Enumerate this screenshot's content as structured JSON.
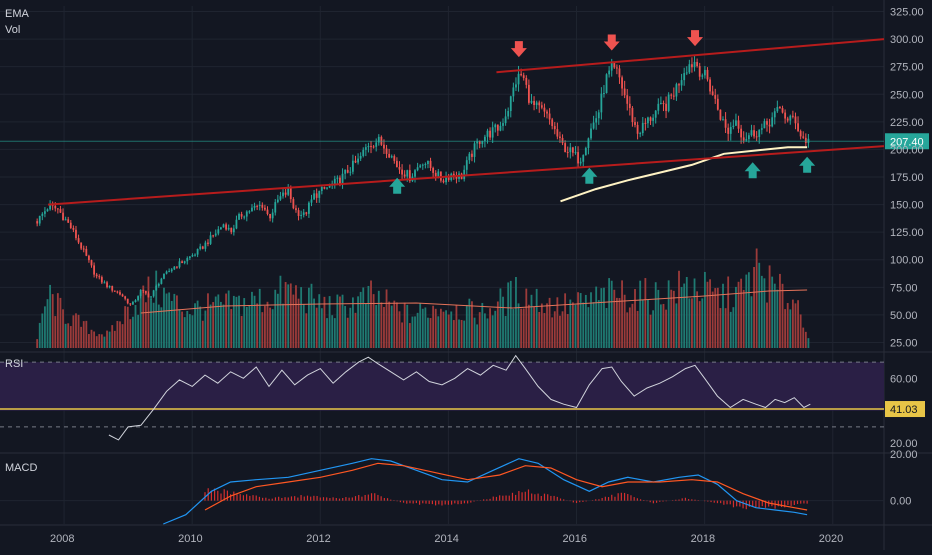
{
  "indicators": {
    "main": [
      "EMA",
      "Vol"
    ],
    "rsi": "RSI",
    "macd": "MACD"
  },
  "colors": {
    "background": "#131722",
    "grid": "#1f2430",
    "up": "#26a69a",
    "down": "#ef5350",
    "vol_up": "#1f7a72",
    "vol_down": "#9c3b3a",
    "trendline": "#b71c1c",
    "ema": "#fff3c4",
    "vol_ma": "#e5735a",
    "rsi_band": "#2a1f45",
    "rsi_line": "#d1d4dc",
    "rsi_level": "#e8c547",
    "macd_line": "#2196f3",
    "signal_line": "#ff5722",
    "hist": "#d32f2f",
    "arrow_down": "#ef5350",
    "arrow_up": "#26a69a",
    "axis_text": "#b2b5be"
  },
  "chart_data": [
    {
      "type": "candlestick",
      "name": "price",
      "ylim": [
        20,
        330
      ],
      "y_ticks": [
        "25.00",
        "50.00",
        "75.00",
        "100.00",
        "125.00",
        "150.00",
        "175.00",
        "200.00",
        "225.00",
        "250.00",
        "275.00",
        "300.00",
        "325.00"
      ],
      "y_tick_values": [
        25,
        50,
        75,
        100,
        125,
        150,
        175,
        200,
        225,
        250,
        275,
        300,
        325
      ],
      "x_range": [
        2007.0,
        2020.8
      ],
      "x_ticks": [
        "2008",
        "2010",
        "2012",
        "2014",
        "2016",
        "2018",
        "2020"
      ],
      "x_tick_values": [
        2008,
        2010,
        2012,
        2014,
        2016,
        2018,
        2020
      ],
      "last_price": "207.40",
      "last_value": 207.4,
      "close_anchors": [
        [
          2007.58,
          135
        ],
        [
          2007.75,
          148
        ],
        [
          2007.9,
          146
        ],
        [
          2008.1,
          130
        ],
        [
          2008.3,
          108
        ],
        [
          2008.5,
          85
        ],
        [
          2008.7,
          75
        ],
        [
          2008.9,
          68
        ],
        [
          2009.05,
          58
        ],
        [
          2009.2,
          72
        ],
        [
          2009.35,
          66
        ],
        [
          2009.5,
          82
        ],
        [
          2009.7,
          93
        ],
        [
          2009.9,
          100
        ],
        [
          2010.1,
          108
        ],
        [
          2010.3,
          120
        ],
        [
          2010.5,
          133
        ],
        [
          2010.6,
          125
        ],
        [
          2010.75,
          140
        ],
        [
          2010.9,
          145
        ],
        [
          2011.1,
          150
        ],
        [
          2011.2,
          138
        ],
        [
          2011.35,
          155
        ],
        [
          2011.5,
          162
        ],
        [
          2011.6,
          145
        ],
        [
          2011.75,
          140
        ],
        [
          2011.9,
          158
        ],
        [
          2012.1,
          165
        ],
        [
          2012.3,
          172
        ],
        [
          2012.45,
          182
        ],
        [
          2012.6,
          190
        ],
        [
          2012.75,
          205
        ],
        [
          2012.9,
          208
        ],
        [
          2013.05,
          200
        ],
        [
          2013.2,
          185
        ],
        [
          2013.4,
          175
        ],
        [
          2013.6,
          190
        ],
        [
          2013.75,
          182
        ],
        [
          2013.9,
          172
        ],
        [
          2014.05,
          178
        ],
        [
          2014.2,
          175
        ],
        [
          2014.35,
          195
        ],
        [
          2014.5,
          210
        ],
        [
          2014.65,
          215
        ],
        [
          2014.8,
          220
        ],
        [
          2014.95,
          240
        ],
        [
          2015.05,
          262
        ],
        [
          2015.15,
          268
        ],
        [
          2015.3,
          240
        ],
        [
          2015.45,
          235
        ],
        [
          2015.6,
          225
        ],
        [
          2015.75,
          205
        ],
        [
          2015.9,
          198
        ],
        [
          2016.05,
          190
        ],
        [
          2016.2,
          215
        ],
        [
          2016.35,
          235
        ],
        [
          2016.45,
          262
        ],
        [
          2016.55,
          272
        ],
        [
          2016.65,
          268
        ],
        [
          2016.8,
          240
        ],
        [
          2016.95,
          215
        ],
        [
          2017.1,
          225
        ],
        [
          2017.25,
          235
        ],
        [
          2017.4,
          240
        ],
        [
          2017.55,
          255
        ],
        [
          2017.7,
          275
        ],
        [
          2017.85,
          280
        ],
        [
          2017.95,
          270
        ],
        [
          2018.05,
          262
        ],
        [
          2018.2,
          238
        ],
        [
          2018.35,
          215
        ],
        [
          2018.5,
          228
        ],
        [
          2018.6,
          210
        ],
        [
          2018.75,
          215
        ],
        [
          2018.9,
          218
        ],
        [
          2019.05,
          228
        ],
        [
          2019.2,
          238
        ],
        [
          2019.3,
          224
        ],
        [
          2019.4,
          230
        ],
        [
          2019.5,
          212
        ],
        [
          2019.6,
          207.4
        ]
      ],
      "volume_anchors": [
        [
          2007.58,
          10
        ],
        [
          2007.75,
          63
        ],
        [
          2008.0,
          40
        ],
        [
          2008.4,
          22
        ],
        [
          2008.7,
          15
        ],
        [
          2009.0,
          45
        ],
        [
          2009.4,
          70
        ],
        [
          2009.9,
          45
        ],
        [
          2010.5,
          50
        ],
        [
          2011.2,
          58
        ],
        [
          2011.5,
          68
        ],
        [
          2012.2,
          46
        ],
        [
          2012.8,
          60
        ],
        [
          2013.4,
          38
        ],
        [
          2013.9,
          50
        ],
        [
          2014.5,
          40
        ],
        [
          2015.1,
          66
        ],
        [
          2015.7,
          48
        ],
        [
          2016.1,
          52
        ],
        [
          2016.6,
          64
        ],
        [
          2017.2,
          60
        ],
        [
          2017.8,
          74
        ],
        [
          2018.2,
          60
        ],
        [
          2018.6,
          66
        ],
        [
          2018.8,
          93
        ],
        [
          2019.1,
          68
        ],
        [
          2019.5,
          50
        ],
        [
          2019.6,
          15
        ]
      ],
      "vol_ma_anchors": [
        [
          2009.2,
          35
        ],
        [
          2010.5,
          42
        ],
        [
          2012.0,
          44
        ],
        [
          2013.5,
          45
        ],
        [
          2015.0,
          40
        ],
        [
          2016.0,
          44
        ],
        [
          2017.0,
          48
        ],
        [
          2018.0,
          52
        ],
        [
          2019.0,
          57
        ],
        [
          2019.6,
          58
        ]
      ],
      "ema_anchors": [
        [
          2015.75,
          153
        ],
        [
          2016.3,
          164
        ],
        [
          2016.8,
          172
        ],
        [
          2017.3,
          179
        ],
        [
          2017.8,
          186
        ],
        [
          2018.3,
          196
        ],
        [
          2018.8,
          199
        ],
        [
          2019.3,
          202
        ],
        [
          2019.6,
          202
        ]
      ],
      "trendlines": [
        {
          "from": [
            2007.75,
            150
          ],
          "to": [
            2020.8,
            203
          ]
        },
        {
          "from": [
            2014.75,
            270
          ],
          "to": [
            2020.8,
            300
          ]
        }
      ],
      "arrows_down": [
        [
          2015.1,
          290
        ],
        [
          2016.55,
          296
        ],
        [
          2017.85,
          300
        ]
      ],
      "arrows_up": [
        [
          2013.2,
          168
        ],
        [
          2016.2,
          177
        ],
        [
          2018.75,
          182
        ],
        [
          2019.6,
          187
        ]
      ]
    },
    {
      "type": "line",
      "name": "RSI",
      "ylim": [
        14.5,
        75
      ],
      "y_ticks": [
        "20.00",
        "60.00"
      ],
      "y_tick_values": [
        20,
        60
      ],
      "bands": [
        40,
        70
      ],
      "dashed_levels": [
        30,
        70
      ],
      "current_level": 41.03,
      "current_label": "41.03",
      "anchors": [
        [
          2008.7,
          25
        ],
        [
          2008.85,
          22
        ],
        [
          2009.0,
          30
        ],
        [
          2009.2,
          31
        ],
        [
          2009.4,
          41
        ],
        [
          2009.6,
          52
        ],
        [
          2009.8,
          59
        ],
        [
          2010.0,
          55
        ],
        [
          2010.2,
          62
        ],
        [
          2010.4,
          57
        ],
        [
          2010.6,
          64
        ],
        [
          2010.8,
          60
        ],
        [
          2011.0,
          67
        ],
        [
          2011.2,
          55
        ],
        [
          2011.4,
          65
        ],
        [
          2011.6,
          56
        ],
        [
          2011.8,
          62
        ],
        [
          2012.0,
          66
        ],
        [
          2012.2,
          57
        ],
        [
          2012.4,
          64
        ],
        [
          2012.6,
          70
        ],
        [
          2012.75,
          73
        ],
        [
          2012.9,
          69
        ],
        [
          2013.1,
          64
        ],
        [
          2013.3,
          59
        ],
        [
          2013.5,
          64
        ],
        [
          2013.7,
          58
        ],
        [
          2013.9,
          56
        ],
        [
          2014.1,
          60
        ],
        [
          2014.3,
          66
        ],
        [
          2014.5,
          62
        ],
        [
          2014.7,
          68
        ],
        [
          2014.9,
          65
        ],
        [
          2015.05,
          74
        ],
        [
          2015.2,
          66
        ],
        [
          2015.4,
          55
        ],
        [
          2015.6,
          47
        ],
        [
          2015.8,
          44
        ],
        [
          2016.0,
          42
        ],
        [
          2016.2,
          56
        ],
        [
          2016.4,
          66
        ],
        [
          2016.55,
          67
        ],
        [
          2016.7,
          58
        ],
        [
          2016.9,
          49
        ],
        [
          2017.1,
          54
        ],
        [
          2017.3,
          57
        ],
        [
          2017.5,
          61
        ],
        [
          2017.7,
          66
        ],
        [
          2017.85,
          68
        ],
        [
          2018.0,
          60
        ],
        [
          2018.2,
          49
        ],
        [
          2018.4,
          42
        ],
        [
          2018.6,
          47
        ],
        [
          2018.8,
          44
        ],
        [
          2018.95,
          42
        ],
        [
          2019.1,
          47
        ],
        [
          2019.25,
          45
        ],
        [
          2019.4,
          48
        ],
        [
          2019.55,
          42
        ],
        [
          2019.65,
          44
        ]
      ]
    },
    {
      "type": "line",
      "name": "MACD",
      "ylim": [
        -10,
        20
      ],
      "y_ticks": [
        "20.00",
        "0.00"
      ],
      "y_tick_values": [
        20,
        0
      ],
      "macd_anchors": [
        [
          2009.55,
          -10
        ],
        [
          2009.9,
          -6
        ],
        [
          2010.3,
          4
        ],
        [
          2010.6,
          8
        ],
        [
          2011.0,
          9
        ],
        [
          2011.5,
          10
        ],
        [
          2012.0,
          13
        ],
        [
          2012.5,
          16
        ],
        [
          2012.8,
          18
        ],
        [
          2013.1,
          17
        ],
        [
          2013.5,
          13
        ],
        [
          2013.9,
          9
        ],
        [
          2014.3,
          8
        ],
        [
          2014.7,
          13
        ],
        [
          2015.1,
          18
        ],
        [
          2015.4,
          16
        ],
        [
          2015.8,
          9
        ],
        [
          2016.2,
          4
        ],
        [
          2016.5,
          8
        ],
        [
          2016.8,
          10
        ],
        [
          2017.2,
          8
        ],
        [
          2017.6,
          10
        ],
        [
          2017.9,
          11
        ],
        [
          2018.2,
          7
        ],
        [
          2018.5,
          0
        ],
        [
          2018.8,
          -3
        ],
        [
          2019.1,
          -4
        ],
        [
          2019.4,
          -5
        ],
        [
          2019.6,
          -6
        ]
      ],
      "signal_anchors": [
        [
          2010.2,
          -4
        ],
        [
          2010.6,
          2
        ],
        [
          2011.0,
          6
        ],
        [
          2011.5,
          8
        ],
        [
          2012.0,
          10
        ],
        [
          2012.5,
          13
        ],
        [
          2012.9,
          16
        ],
        [
          2013.3,
          15
        ],
        [
          2013.8,
          12
        ],
        [
          2014.3,
          9
        ],
        [
          2014.8,
          11
        ],
        [
          2015.2,
          15
        ],
        [
          2015.6,
          14
        ],
        [
          2016.0,
          9
        ],
        [
          2016.4,
          6
        ],
        [
          2016.8,
          8
        ],
        [
          2017.3,
          8
        ],
        [
          2017.8,
          9
        ],
        [
          2018.2,
          8
        ],
        [
          2018.6,
          3
        ],
        [
          2019.0,
          -1
        ],
        [
          2019.4,
          -3
        ],
        [
          2019.6,
          -4
        ]
      ],
      "hist_anchors": [
        [
          2010.2,
          5
        ],
        [
          2010.7,
          3
        ],
        [
          2011.2,
          1
        ],
        [
          2011.7,
          2
        ],
        [
          2012.3,
          1
        ],
        [
          2012.8,
          3
        ],
        [
          2013.3,
          -1
        ],
        [
          2013.8,
          -2
        ],
        [
          2014.3,
          -1
        ],
        [
          2014.8,
          2
        ],
        [
          2015.2,
          4
        ],
        [
          2015.6,
          2
        ],
        [
          2016.0,
          -1
        ],
        [
          2016.4,
          1
        ],
        [
          2016.7,
          3
        ],
        [
          2017.2,
          -1
        ],
        [
          2017.7,
          1
        ],
        [
          2018.2,
          -1
        ],
        [
          2018.6,
          -3
        ],
        [
          2019.0,
          -3
        ],
        [
          2019.4,
          -2
        ],
        [
          2019.6,
          -1
        ]
      ]
    }
  ]
}
